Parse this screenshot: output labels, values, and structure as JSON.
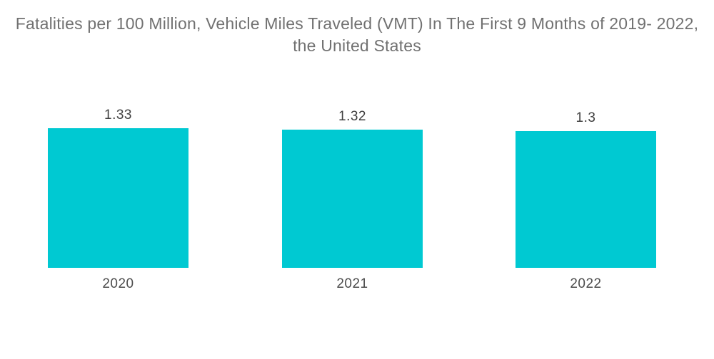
{
  "title": {
    "line1": "Fatalities per 100 Million, Vehicle Miles Traveled (VMT) In The First 9 Months of 2019- 2022,",
    "line2": "the United States"
  },
  "chart_data": {
    "type": "bar",
    "title": "Fatalities per 100 Million, Vehicle Miles Traveled (VMT) In The First 9 Months of 2019- 2022, the United States",
    "categories": [
      "2020",
      "2021",
      "2022"
    ],
    "values": [
      1.33,
      1.32,
      1.3
    ],
    "value_labels": [
      "1.33",
      "1.32",
      "1.3"
    ],
    "xlabel": "",
    "ylabel": "",
    "ylim": [
      0,
      1.33
    ],
    "grid": false,
    "legend": "none",
    "axes_visible": false,
    "bar_color": "#00c9d2",
    "background_color": "#ffffff",
    "title_color": "#717171",
    "value_label_color": "#3f3f3f",
    "category_label_color": "#4c4c4c"
  }
}
